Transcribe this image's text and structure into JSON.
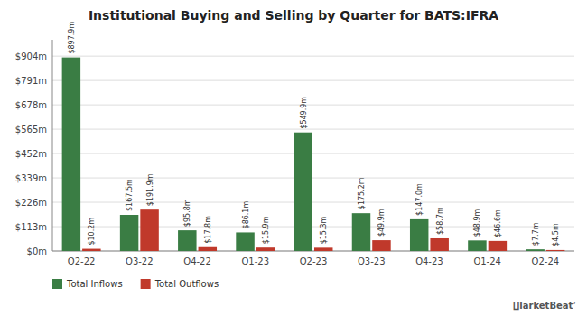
{
  "chart_data": {
    "type": "bar",
    "title": "Institutional Buying and Selling by Quarter for BATS:IFRA",
    "categories": [
      "Q2-22",
      "Q3-22",
      "Q4-22",
      "Q1-23",
      "Q2-23",
      "Q3-23",
      "Q4-23",
      "Q1-24",
      "Q2-24"
    ],
    "series": [
      {
        "name": "Total Inflows",
        "color": "#3a7d44",
        "values": [
          897.9,
          167.5,
          95.8,
          86.1,
          549.9,
          175.2,
          147.0,
          48.9,
          7.7
        ],
        "value_labels": [
          "$897.9m",
          "$167.5m",
          "$95.8m",
          "$86.1m",
          "$549.9m",
          "$175.2m",
          "$147.0m",
          "$48.9m",
          "$7.7m"
        ]
      },
      {
        "name": "Total Outflows",
        "color": "#c0392b",
        "values": [
          10.2,
          191.9,
          17.8,
          15.9,
          15.3,
          49.9,
          58.7,
          46.6,
          4.5
        ],
        "value_labels": [
          "$10.2m",
          "$191.9m",
          "$17.8m",
          "$15.9m",
          "$15.3m",
          "$49.9m",
          "$58.7m",
          "$46.6m",
          "$4.5m"
        ]
      }
    ],
    "ylim": [
      0,
      980
    ],
    "yticks": [
      {
        "value": 0,
        "label": "$0m"
      },
      {
        "value": 113,
        "label": "$113m"
      },
      {
        "value": 226,
        "label": "$226m"
      },
      {
        "value": 339,
        "label": "$339m"
      },
      {
        "value": 452,
        "label": "$452m"
      },
      {
        "value": 565,
        "label": "$565m"
      },
      {
        "value": 678,
        "label": "$678m"
      },
      {
        "value": 791,
        "label": "$791m"
      },
      {
        "value": 904,
        "label": "$904m"
      }
    ],
    "grid": true,
    "data_labels": true,
    "legend": "bottom",
    "annotations": [
      "⨿larketBeatʾ"
    ]
  }
}
